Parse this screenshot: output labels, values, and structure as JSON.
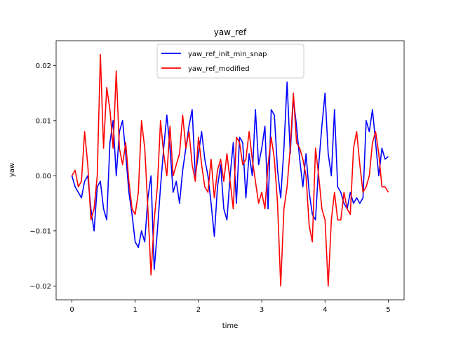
{
  "chart_data": {
    "type": "line",
    "title": "yaw_ref",
    "xlabel": "time",
    "ylabel": "yaw",
    "xlim": [
      -0.25,
      5.25
    ],
    "ylim": [
      -0.0225,
      0.0245
    ],
    "xticks": [
      0,
      1,
      2,
      3,
      4,
      5
    ],
    "xtick_labels": [
      "0",
      "1",
      "2",
      "3",
      "4",
      "5"
    ],
    "yticks": [
      -0.02,
      -0.01,
      0.0,
      0.01,
      0.02
    ],
    "ytick_labels": [
      "−0.02",
      "−0.01",
      "0.00",
      "0.01",
      "0.02"
    ],
    "grid": false,
    "legend_position": "top-center",
    "series": [
      {
        "name": "yaw_ref_init_min_snap",
        "color": "#0000ff",
        "x": [
          0,
          0.05,
          0.1,
          0.15,
          0.2,
          0.25,
          0.3,
          0.35,
          0.4,
          0.45,
          0.5,
          0.55,
          0.6,
          0.65,
          0.7,
          0.75,
          0.8,
          0.85,
          0.9,
          0.95,
          1.0,
          1.05,
          1.1,
          1.15,
          1.2,
          1.25,
          1.3,
          1.35,
          1.4,
          1.45,
          1.5,
          1.55,
          1.6,
          1.65,
          1.7,
          1.75,
          1.8,
          1.85,
          1.9,
          1.95,
          2.0,
          2.05,
          2.1,
          2.15,
          2.2,
          2.25,
          2.3,
          2.35,
          2.4,
          2.45,
          2.5,
          2.55,
          2.6,
          2.65,
          2.7,
          2.75,
          2.8,
          2.85,
          2.9,
          2.95,
          3.0,
          3.05,
          3.1,
          3.15,
          3.2,
          3.25,
          3.3,
          3.35,
          3.4,
          3.45,
          3.5,
          3.55,
          3.6,
          3.65,
          3.7,
          3.75,
          3.8,
          3.85,
          3.9,
          3.95,
          4.0,
          4.05,
          4.1,
          4.15,
          4.2,
          4.25,
          4.3,
          4.35,
          4.4,
          4.45,
          4.5,
          4.55,
          4.6,
          4.65,
          4.7,
          4.75,
          4.8,
          4.85,
          4.9,
          4.95,
          5.0
        ],
        "values": [
          0.0,
          -0.002,
          -0.003,
          -0.004,
          -0.001,
          0.0,
          -0.006,
          -0.01,
          -0.002,
          -0.001,
          -0.006,
          -0.008,
          0.006,
          0.01,
          0.0,
          0.008,
          0.01,
          0.004,
          -0.003,
          -0.007,
          -0.012,
          -0.013,
          -0.01,
          -0.012,
          -0.004,
          0.0,
          -0.017,
          -0.01,
          -0.002,
          0.005,
          0.011,
          0.005,
          -0.003,
          -0.001,
          -0.005,
          0.001,
          0.005,
          0.009,
          0.012,
          0.0,
          0.004,
          0.008,
          0.003,
          0.0,
          -0.005,
          -0.011,
          -0.002,
          0.002,
          -0.006,
          -0.008,
          0.0,
          0.006,
          -0.005,
          0.007,
          0.006,
          -0.004,
          0.004,
          0.0,
          0.012,
          0.002,
          0.005,
          0.009,
          -0.006,
          0.012,
          0.011,
          0.001,
          -0.004,
          0.005,
          0.017,
          0.004,
          0.014,
          0.009,
          0.003,
          -0.002,
          0.004,
          -0.003,
          -0.007,
          -0.008,
          0.002,
          0.009,
          0.015,
          0.004,
          0.0,
          0.012,
          -0.002,
          -0.003,
          -0.005,
          -0.006,
          -0.003,
          -0.005,
          -0.004,
          -0.005,
          -0.004,
          0.01,
          0.008,
          0.012,
          0.006,
          0.0,
          0.005,
          0.003,
          0.0035
        ]
      },
      {
        "name": "yaw_ref_modified",
        "color": "#ff0000",
        "x": [
          0,
          0.05,
          0.1,
          0.15,
          0.2,
          0.25,
          0.3,
          0.35,
          0.4,
          0.45,
          0.5,
          0.55,
          0.6,
          0.65,
          0.7,
          0.75,
          0.8,
          0.85,
          0.9,
          0.95,
          1.0,
          1.05,
          1.1,
          1.15,
          1.2,
          1.25,
          1.3,
          1.35,
          1.4,
          1.45,
          1.5,
          1.55,
          1.6,
          1.65,
          1.7,
          1.75,
          1.8,
          1.85,
          1.9,
          1.95,
          2.0,
          2.05,
          2.1,
          2.15,
          2.2,
          2.25,
          2.3,
          2.35,
          2.4,
          2.45,
          2.5,
          2.55,
          2.6,
          2.65,
          2.7,
          2.75,
          2.8,
          2.85,
          2.9,
          2.95,
          3.0,
          3.05,
          3.1,
          3.15,
          3.2,
          3.25,
          3.3,
          3.35,
          3.4,
          3.45,
          3.5,
          3.55,
          3.6,
          3.65,
          3.7,
          3.75,
          3.8,
          3.85,
          3.9,
          3.95,
          4.0,
          4.05,
          4.1,
          4.15,
          4.2,
          4.25,
          4.3,
          4.35,
          4.4,
          4.45,
          4.5,
          4.55,
          4.6,
          4.65,
          4.7,
          4.75,
          4.8,
          4.85,
          4.9,
          4.95,
          5.0
        ],
        "values": [
          0.0,
          0.001,
          -0.002,
          -0.001,
          0.008,
          0.002,
          -0.008,
          -0.006,
          0.0,
          0.022,
          0.005,
          0.016,
          0.012,
          0.005,
          0.019,
          0.005,
          0.002,
          0.006,
          -0.001,
          -0.006,
          -0.007,
          -0.003,
          0.01,
          0.005,
          -0.006,
          -0.018,
          -0.008,
          -0.002,
          0.01,
          0.004,
          0.0,
          0.009,
          0.0,
          0.002,
          0.004,
          0.011,
          0.005,
          0.008,
          0.002,
          -0.001,
          0.007,
          0.002,
          -0.002,
          -0.003,
          0.003,
          -0.004,
          0.001,
          0.003,
          -0.001,
          0.004,
          -0.001,
          -0.006,
          0.007,
          0.006,
          0.002,
          0.003,
          0.008,
          0.003,
          -0.001,
          -0.005,
          -0.003,
          -0.006,
          0.002,
          0.007,
          0.003,
          -0.005,
          -0.02,
          -0.006,
          -0.002,
          0.005,
          0.015,
          0.006,
          0.005,
          0.003,
          0.0,
          -0.009,
          -0.012,
          0.005,
          0.0,
          -0.006,
          -0.008,
          -0.02,
          -0.008,
          -0.003,
          -0.008,
          -0.008,
          -0.003,
          -0.006,
          -0.007,
          0.005,
          0.008,
          0.002,
          -0.003,
          -0.002,
          0.0,
          0.006,
          0.008,
          0.004,
          -0.002,
          -0.002,
          -0.003
        ]
      }
    ]
  }
}
